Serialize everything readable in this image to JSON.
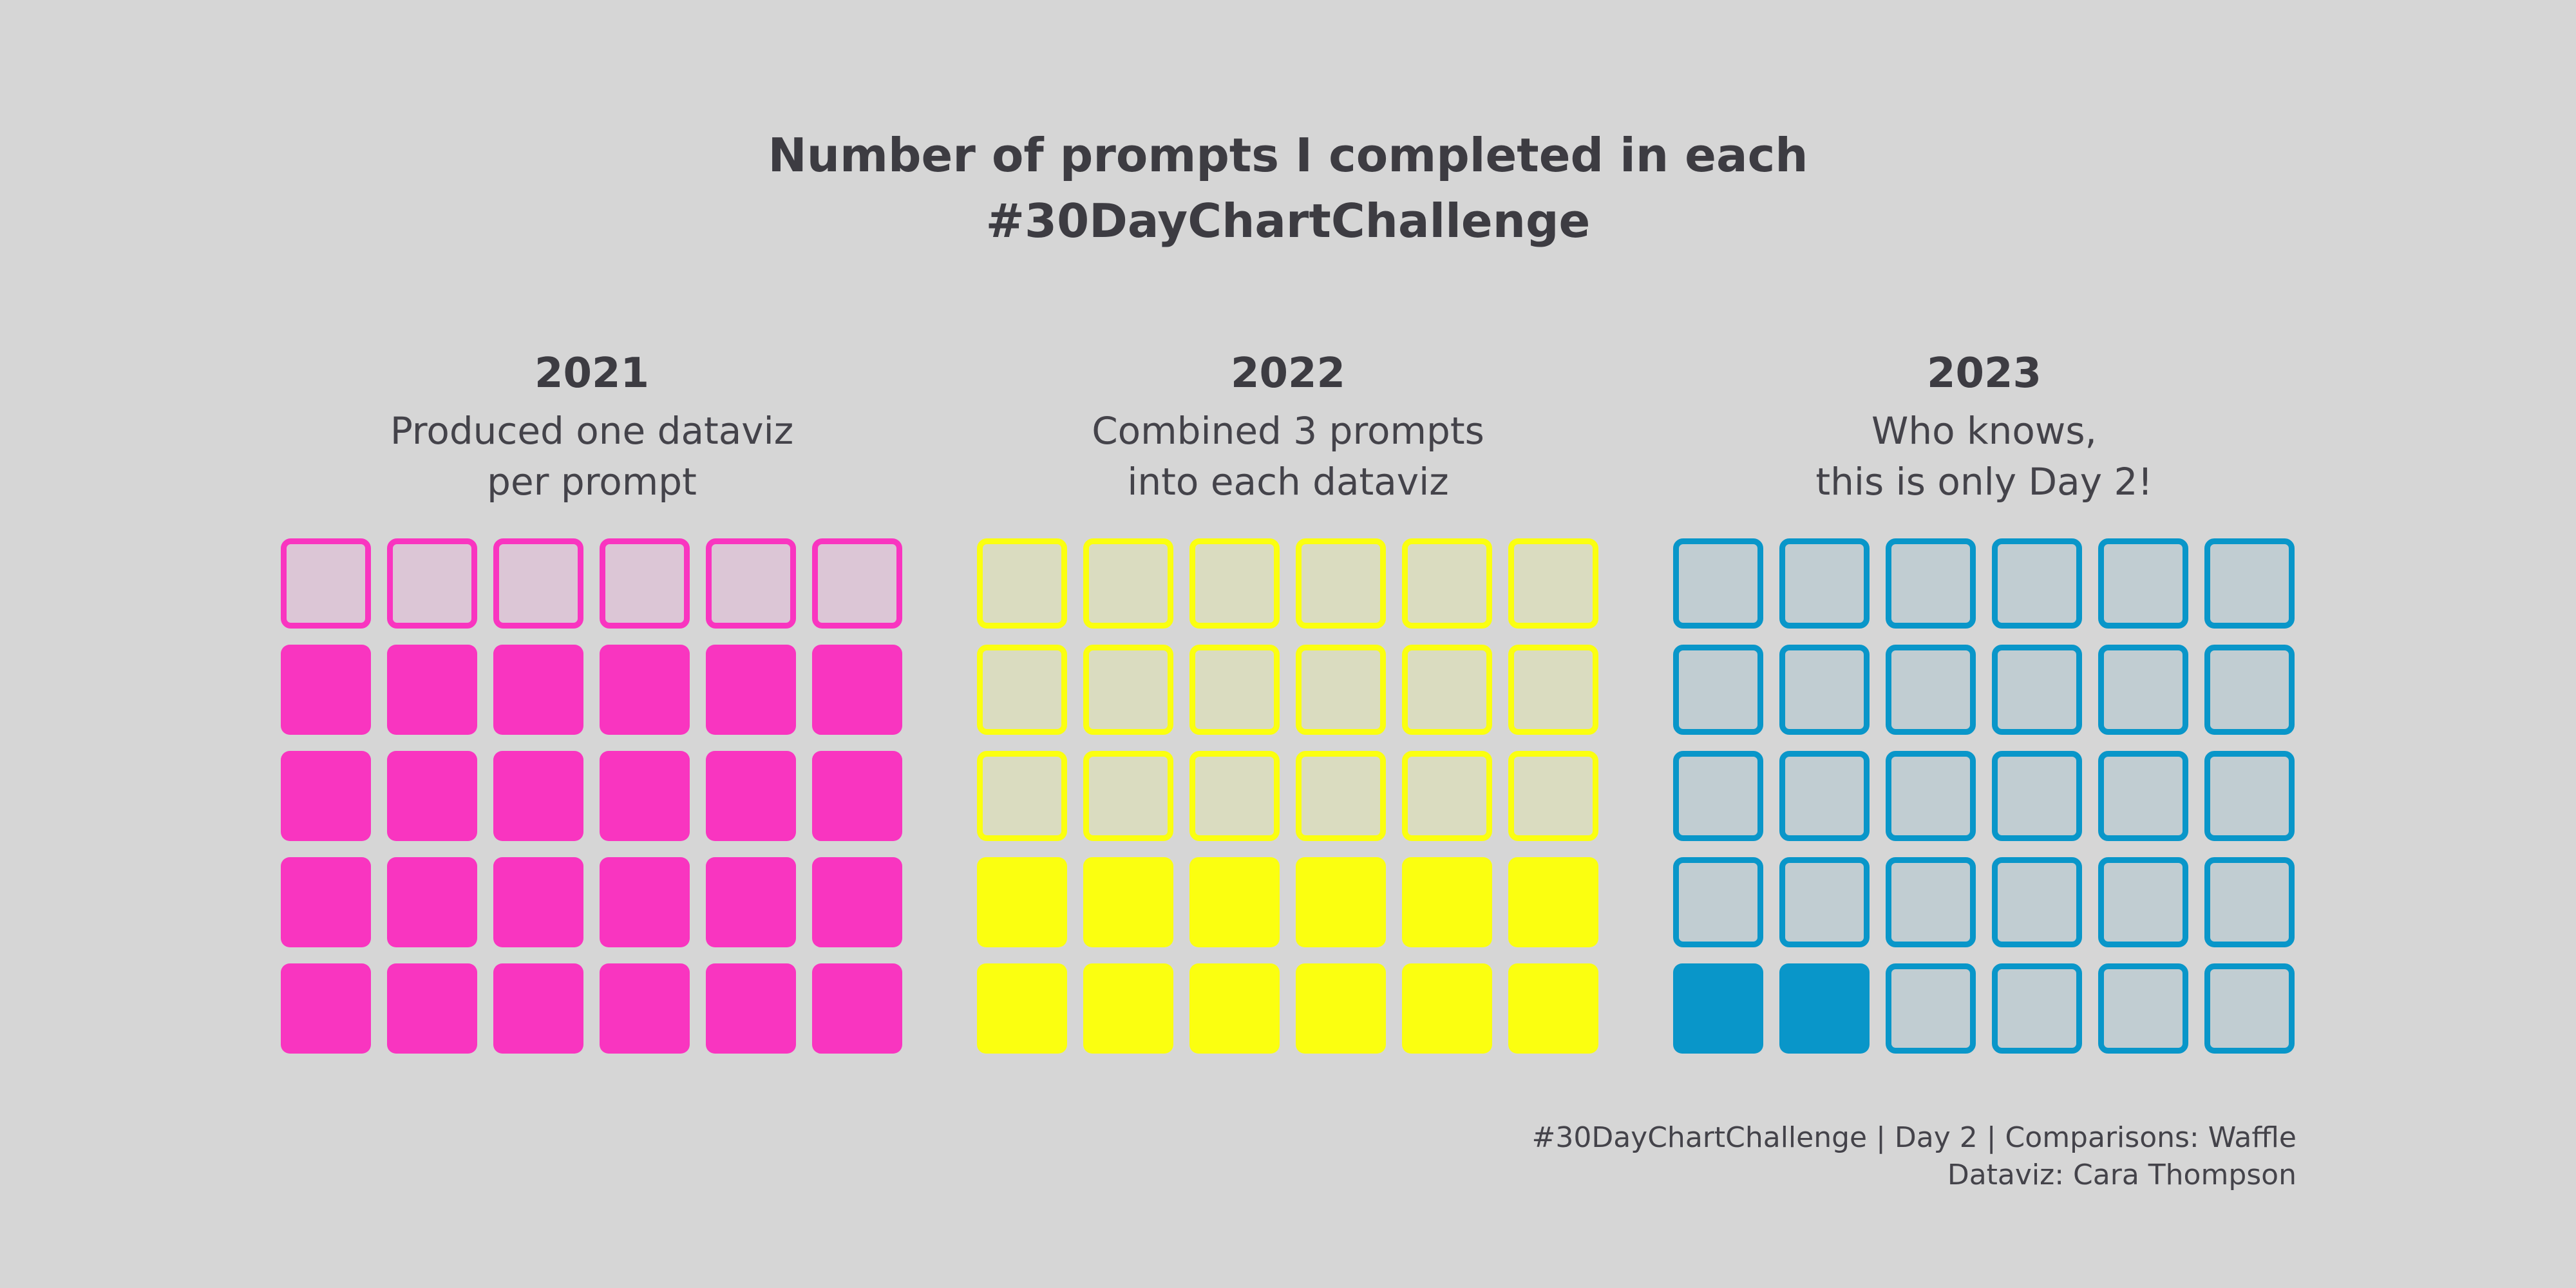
{
  "title": {
    "line1": "Number of prompts I completed in each",
    "line2": "#30DayChartChallenge"
  },
  "panels": [
    {
      "year": "2021",
      "subtitle_line1": "Produced one dataviz",
      "subtitle_line2": "per prompt",
      "color": "#f935c0",
      "empty_fill": "#dcc6d6"
    },
    {
      "year": "2022",
      "subtitle_line1": "Combined 3 prompts",
      "subtitle_line2": "into each dataviz",
      "color": "#fbff10",
      "empty_fill": "#dadcc0"
    },
    {
      "year": "2023",
      "subtitle_line1": "Who knows,",
      "subtitle_line2": "this is only Day 2!",
      "color": "#0996c9",
      "empty_fill": "#c1cdd2"
    }
  ],
  "caption": {
    "line1": "#30DayChartChallenge | Day 2 | Comparisons: Waffle",
    "line2": "Dataviz: Cara Thompson"
  },
  "chart_data": {
    "type": "waffle",
    "total_prompts": 30,
    "rows": 5,
    "columns": 6,
    "categories": [
      "2021",
      "2022",
      "2023"
    ],
    "values": [
      24,
      12,
      2
    ]
  }
}
